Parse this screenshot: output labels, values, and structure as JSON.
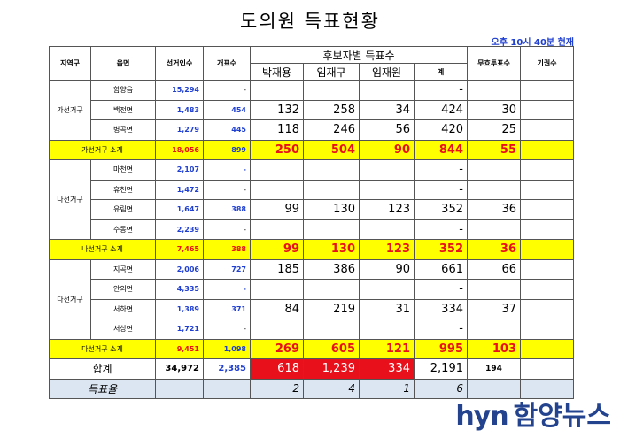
{
  "title": "도의원 득표현황",
  "as_of": "오후 10시 40분 현재",
  "headers": {
    "region": "지역구",
    "town": "읍면",
    "voters": "선거인수",
    "counted": "개표수",
    "group": "후보자별 득표수",
    "cand1": "박재용",
    "cand2": "임재구",
    "cand3": "임재원",
    "total": "계",
    "invalid": "무효투표수",
    "abstain": "기권수"
  },
  "rows": [
    {
      "town": "함양읍",
      "voters": "15,294",
      "counted": "-",
      "c1": "",
      "c2": "",
      "c3": "",
      "total": "-",
      "invalid": "",
      "abstain": ""
    },
    {
      "town": "백전면",
      "voters": "1,483",
      "counted": "454",
      "c1": "132",
      "c2": "258",
      "c3": "34",
      "total": "424",
      "invalid": "30",
      "abstain": ""
    },
    {
      "town": "병곡면",
      "voters": "1,279",
      "counted": "445",
      "c1": "118",
      "c2": "246",
      "c3": "56",
      "total": "420",
      "invalid": "25",
      "abstain": ""
    },
    {
      "town": "마천면",
      "voters": "2,107",
      "counted": "-",
      "c1": "",
      "c2": "",
      "c3": "",
      "total": "-",
      "invalid": "",
      "abstain": ""
    },
    {
      "town": "휴천면",
      "voters": "1,472",
      "counted": "-",
      "c1": "",
      "c2": "",
      "c3": "",
      "total": "-",
      "invalid": "",
      "abstain": ""
    },
    {
      "town": "유림면",
      "voters": "1,647",
      "counted": "388",
      "c1": "99",
      "c2": "130",
      "c3": "123",
      "total": "352",
      "invalid": "36",
      "abstain": ""
    },
    {
      "town": "수동면",
      "voters": "2,239",
      "counted": "-",
      "c1": "",
      "c2": "",
      "c3": "",
      "total": "-",
      "invalid": "",
      "abstain": ""
    },
    {
      "town": "지곡면",
      "voters": "2,006",
      "counted": "727",
      "c1": "185",
      "c2": "386",
      "c3": "90",
      "total": "661",
      "invalid": "66",
      "abstain": ""
    },
    {
      "town": "안의면",
      "voters": "4,335",
      "counted": "-",
      "c1": "",
      "c2": "",
      "c3": "",
      "total": "-",
      "invalid": "",
      "abstain": ""
    },
    {
      "town": "서하면",
      "voters": "1,389",
      "counted": "371",
      "c1": "84",
      "c2": "219",
      "c3": "31",
      "total": "334",
      "invalid": "37",
      "abstain": ""
    },
    {
      "town": "서상면",
      "voters": "1,721",
      "counted": "-",
      "c1": "",
      "c2": "",
      "c3": "",
      "total": "-",
      "invalid": "",
      "abstain": ""
    }
  ],
  "districts": [
    "가선거구",
    "나선거구",
    "다선거구"
  ],
  "subtotals": [
    {
      "label": "가선거구 소계",
      "voters": "18,056",
      "counted": "899",
      "c1": "250",
      "c2": "504",
      "c3": "90",
      "total": "844",
      "invalid": "55"
    },
    {
      "label": "나선거구 소계",
      "voters": "7,465",
      "counted": "388",
      "c1": "99",
      "c2": "130",
      "c3": "123",
      "total": "352",
      "invalid": "36"
    },
    {
      "label": "다선거구 소계",
      "voters": "9,451",
      "counted": "1,098",
      "c1": "269",
      "c2": "605",
      "c3": "121",
      "total": "995",
      "invalid": "103"
    }
  ],
  "grand": {
    "label": "합계",
    "voters": "34,972",
    "counted": "2,385",
    "c1": "618",
    "c2": "1,239",
    "c3": "334",
    "total": "2,191",
    "invalid": "194"
  },
  "rank": {
    "label": "득표율",
    "c1": "2",
    "c2": "4",
    "c3": "1",
    "total": "6"
  },
  "logo": {
    "en": "hyn",
    "ko": "함양뉴스"
  },
  "colors": {
    "highlight": "#ffff00",
    "red": "#e8101a",
    "blue": "#1f3fd0",
    "rank_bg": "#dce6f2"
  }
}
